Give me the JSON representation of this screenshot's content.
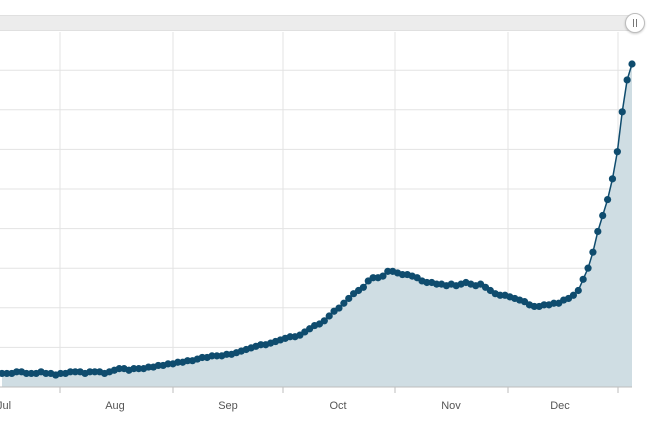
{
  "colors": {
    "line": "#0f4c6e",
    "area": "#cfdde3",
    "grid": "#e3e3e3",
    "axis": "#bdbdbd",
    "scroll_track": "#ececec"
  },
  "scrollbar": {
    "handle_icon": "grip-icon"
  },
  "chart_data": {
    "type": "area",
    "title": "",
    "xlabel": "",
    "ylabel": "",
    "x_tick_labels": [
      "Jul",
      "Aug",
      "Sep",
      "Oct",
      "Nov",
      "Dec"
    ],
    "y_tick_labels": [],
    "grid": true,
    "y_axis_labels_visible": false,
    "note": "",
    "series": [
      {
        "values": [
          0.06,
          0.06,
          0.06,
          0.07,
          0.07,
          0.06,
          0.06,
          0.06,
          0.07,
          0.06,
          0.06,
          0.05,
          0.06,
          0.06,
          0.07,
          0.07,
          0.07,
          0.06,
          0.07,
          0.07,
          0.07,
          0.06,
          0.07,
          0.08,
          0.09,
          0.09,
          0.08,
          0.09,
          0.09,
          0.09,
          0.1,
          0.1,
          0.11,
          0.11,
          0.12,
          0.12,
          0.13,
          0.13,
          0.14,
          0.14,
          0.15,
          0.16,
          0.16,
          0.17,
          0.17,
          0.17,
          0.18,
          0.18,
          0.19,
          0.2,
          0.21,
          0.22,
          0.23,
          0.24,
          0.24,
          0.25,
          0.26,
          0.27,
          0.28,
          0.29,
          0.29,
          0.3,
          0.32,
          0.34,
          0.36,
          0.37,
          0.39,
          0.42,
          0.45,
          0.47,
          0.5,
          0.53,
          0.56,
          0.58,
          0.6,
          0.64,
          0.66,
          0.66,
          0.67,
          0.7,
          0.7,
          0.69,
          0.68,
          0.68,
          0.67,
          0.66,
          0.64,
          0.63,
          0.63,
          0.62,
          0.62,
          0.61,
          0.62,
          0.61,
          0.62,
          0.63,
          0.62,
          0.61,
          0.62,
          0.6,
          0.58,
          0.56,
          0.55,
          0.55,
          0.54,
          0.53,
          0.52,
          0.51,
          0.49,
          0.48,
          0.48,
          0.49,
          0.49,
          0.5,
          0.5,
          0.52,
          0.53,
          0.55,
          0.58,
          0.65,
          0.72,
          0.82,
          0.95,
          1.05,
          1.15,
          1.28,
          1.45,
          1.7,
          1.9,
          2.0
        ]
      }
    ]
  }
}
